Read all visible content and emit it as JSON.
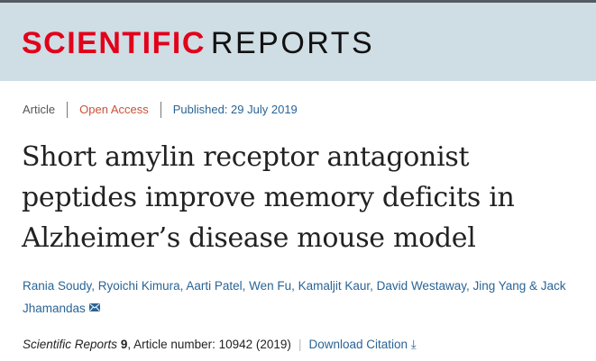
{
  "header": {
    "logo_part1": "SCIENTIFIC",
    "logo_part2": "REPORTS"
  },
  "meta": {
    "type": "Article",
    "access": "Open Access",
    "published": "Published: 29 July 2019"
  },
  "title": "Short amylin receptor antagonist peptides improve memory deficits in Alzheimer’s disease mouse model",
  "authors": {
    "text": "Rania Soudy, Ryoichi Kimura, Aarti Patel, Wen Fu, Kamaljit Kaur, David Westaway, Jing Yang & Jack Jhamandas",
    "icon": "envelope-icon"
  },
  "citation": {
    "journal": "Scientific Reports",
    "volume": "9",
    "rest": ", Article number: 10942 (2019)",
    "separator": "|",
    "download": "Download Citation",
    "download_icon": "download-icon"
  }
}
